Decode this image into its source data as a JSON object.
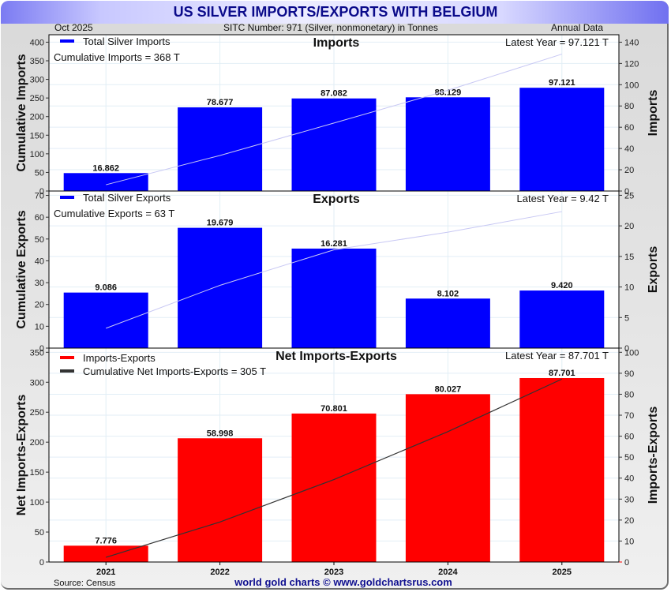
{
  "header": {
    "title": "US SILVER IMPORTS/EXPORTS WITH BELGIUM",
    "date": "Oct  2025",
    "subtitle": "SITC Number: 971 (Silver, nonmonetary) in Tonnes",
    "frequency": "Annual Data"
  },
  "footer": {
    "source": "Source: Census",
    "brand": "world gold charts © www.goldchartsrus.com"
  },
  "colors": {
    "imports": "#0000ff",
    "exports": "#0000ff",
    "net": "#ff0000",
    "cumulative_light": "#c8c8f4",
    "cumulative_dark": "#333333"
  },
  "chart_data": [
    {
      "type": "bar",
      "title": "Imports",
      "categories": [
        "2021",
        "2022",
        "2023",
        "2024",
        "2025"
      ],
      "series": [
        {
          "name": "Total Silver Imports",
          "axis": "right",
          "values": [
            16.862,
            78.677,
            87.082,
            88.129,
            97.121
          ],
          "labels": [
            "16.862",
            "78.677",
            "87.082",
            "88.129",
            "97.121"
          ]
        },
        {
          "name": "Cumulative Imports",
          "axis": "left",
          "type": "line",
          "values": [
            16.862,
            95.539,
            182.621,
            270.75,
            367.871
          ]
        }
      ],
      "legend": [
        "Total Silver Imports"
      ],
      "annotations": {
        "cumulative": "Cumulative Imports = 368 T",
        "latest": "Latest Year = 97.121 T"
      },
      "ylabel_left": "Cumulative Imports",
      "ylabel_right": "Imports",
      "ylim_left": [
        0,
        420
      ],
      "yticks_left": [
        0,
        50,
        100,
        150,
        200,
        250,
        300,
        350,
        400
      ],
      "ylim_right": [
        0,
        147
      ],
      "yticks_right": [
        0,
        20,
        40,
        60,
        80,
        100,
        120,
        140
      ],
      "grid": true
    },
    {
      "type": "bar",
      "title": "Exports",
      "categories": [
        "2021",
        "2022",
        "2023",
        "2024",
        "2025"
      ],
      "series": [
        {
          "name": "Total Silver Exports",
          "axis": "right",
          "values": [
            9.086,
            19.679,
            16.281,
            8.102,
            9.42
          ],
          "labels": [
            "9.086",
            "19.679",
            "16.281",
            "8.102",
            "9.420"
          ]
        },
        {
          "name": "Cumulative Exports",
          "axis": "left",
          "type": "line",
          "values": [
            9.086,
            28.765,
            45.046,
            53.148,
            62.568
          ]
        }
      ],
      "legend": [
        "Total Silver Exports"
      ],
      "annotations": {
        "cumulative": "Cumulative Exports = 63 T",
        "latest": "Latest Year = 9.42 T"
      },
      "ylabel_left": "Cumulative Exports",
      "ylabel_right": "Exports",
      "ylim_left": [
        0,
        72
      ],
      "yticks_left": [
        0,
        10,
        20,
        30,
        40,
        50,
        60,
        70
      ],
      "ylim_right": [
        0,
        25.7
      ],
      "yticks_right": [
        0,
        5,
        10,
        15,
        20,
        25
      ],
      "grid": true
    },
    {
      "type": "bar",
      "title": "Net Imports-Exports",
      "categories": [
        "2021",
        "2022",
        "2023",
        "2024",
        "2025"
      ],
      "series": [
        {
          "name": "Imports-Exports",
          "axis": "right",
          "values": [
            7.776,
            58.998,
            70.801,
            80.027,
            87.701
          ],
          "labels": [
            "7.776",
            "58.998",
            "70.801",
            "80.027",
            "87.701"
          ]
        },
        {
          "name": "Cumulative Net Imports-Exports",
          "axis": "left",
          "type": "line",
          "values": [
            7.776,
            66.774,
            137.575,
            217.602,
            305.303
          ]
        }
      ],
      "legend": [
        "Imports-Exports",
        "Cumulative Net Imports-Exports = 305 T"
      ],
      "annotations": {
        "latest": "Latest Year = 87.701 T"
      },
      "ylabel_left": "Net Imports-Exports",
      "ylabel_right": "Imports-Exports",
      "ylim_left": [
        0,
        357
      ],
      "yticks_left": [
        0,
        50,
        100,
        150,
        200,
        250,
        300,
        350
      ],
      "ylim_right": [
        0,
        102
      ],
      "yticks_right": [
        0,
        10,
        20,
        30,
        40,
        50,
        60,
        70,
        80,
        90,
        100
      ],
      "grid": true
    }
  ]
}
